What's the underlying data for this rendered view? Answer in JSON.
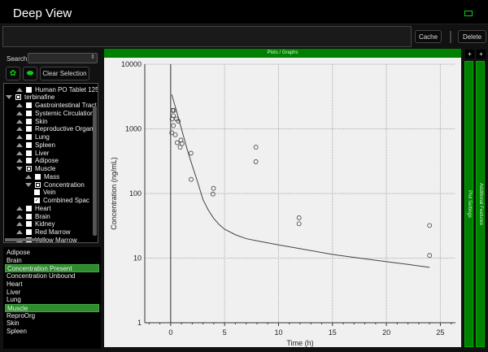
{
  "app": {
    "title": "Deep View",
    "window_icon": "restore-icon"
  },
  "toolbar": {
    "command_value": "",
    "cache_label": "Cache",
    "delete_label": "Delete"
  },
  "left": {
    "search_label": "Search",
    "search_value": "",
    "clear_label": "Clear Selection",
    "tree": [
      {
        "label": "Human PO Tablet 125n",
        "level": 1,
        "expander": "up",
        "check": "off"
      },
      {
        "label": "terbinafine",
        "level": 0,
        "expander": "down",
        "check": "partial"
      },
      {
        "label": "Gastrointestinal Tract",
        "level": 1,
        "expander": "up",
        "check": "off"
      },
      {
        "label": "Systemic Circulation",
        "level": 1,
        "expander": "up",
        "check": "off"
      },
      {
        "label": "Skin",
        "level": 1,
        "expander": "up",
        "check": "off"
      },
      {
        "label": "Reproductive Organ",
        "level": 1,
        "expander": "up",
        "check": "off"
      },
      {
        "label": "Lung",
        "level": 1,
        "expander": "up",
        "check": "off"
      },
      {
        "label": "Spleen",
        "level": 1,
        "expander": "up",
        "check": "off"
      },
      {
        "label": "Liver",
        "level": 1,
        "expander": "up",
        "check": "off"
      },
      {
        "label": "Adipose",
        "level": 1,
        "expander": "up",
        "check": "off"
      },
      {
        "label": "Muscle",
        "level": 1,
        "expander": "down",
        "check": "partial"
      },
      {
        "label": "Mass",
        "level": 2,
        "expander": "up",
        "check": "off"
      },
      {
        "label": "Concentration",
        "level": 2,
        "expander": "down",
        "check": "partial"
      },
      {
        "label": "Vein",
        "level": 3,
        "expander": "none",
        "check": "off"
      },
      {
        "label": "Combined Spac",
        "level": 3,
        "expander": "none",
        "check": "on"
      },
      {
        "label": "Heart",
        "level": 1,
        "expander": "up",
        "check": "off"
      },
      {
        "label": "Brain",
        "level": 1,
        "expander": "up",
        "check": "off"
      },
      {
        "label": "Kidney",
        "level": 1,
        "expander": "up",
        "check": "off"
      },
      {
        "label": "Red Marrow",
        "level": 1,
        "expander": "up",
        "check": "off"
      },
      {
        "label": "Yellow Marrow",
        "level": 1,
        "expander": "up",
        "check": "off"
      }
    ],
    "list": [
      {
        "label": "Adipose",
        "selected": false
      },
      {
        "label": "Brain",
        "selected": false
      },
      {
        "label": "Concentration Present",
        "selected": true
      },
      {
        "label": "Concentration Unbound",
        "selected": false
      },
      {
        "label": "Heart",
        "selected": false
      },
      {
        "label": "Liver",
        "selected": false
      },
      {
        "label": "Lung",
        "selected": false
      },
      {
        "label": "Muscle",
        "selected": true
      },
      {
        "label": "ReproOrg",
        "selected": false
      },
      {
        "label": "Skin",
        "selected": false
      },
      {
        "label": "Spleen",
        "selected": false
      }
    ]
  },
  "plot_panel": {
    "header": "Plots / Graphs",
    "plot_settings": "Plot Settings",
    "additional_features": "Additional Features",
    "expand_label": "+"
  },
  "colors": {
    "accent": "#008000",
    "selected": "#2e8b2e"
  },
  "chart_data": {
    "type": "scatter",
    "xlabel": "Time (h)",
    "ylabel": "Concentration (ng/mL)",
    "xlim": [
      -2.4,
      26.4
    ],
    "ylim": [
      1,
      10000
    ],
    "yscale": "log",
    "grid": true,
    "xticks": [
      0,
      5,
      10,
      15,
      20,
      25
    ],
    "yticks": [
      1,
      10,
      100,
      1000,
      10000
    ],
    "series": [
      {
        "kind": "line",
        "x": [
          0.1,
          0.5,
          1,
          1.5,
          2,
          2.5,
          3,
          3.5,
          4,
          4.5,
          5,
          6,
          7,
          8,
          10,
          12,
          15,
          17.5,
          20,
          22,
          24
        ],
        "y": [
          3400,
          2000,
          1000,
          500,
          270,
          150,
          80,
          55,
          41,
          33,
          28,
          23,
          20,
          18.5,
          16,
          14,
          11.4,
          10,
          8.8,
          8,
          7.2
        ]
      },
      {
        "kind": "points",
        "x": [
          0.18,
          0.28,
          0.25,
          0.13,
          0.55,
          0.7,
          0.25,
          0.1,
          0.43,
          0.6,
          0.95,
          0.88,
          1.05,
          1.88,
          1.9,
          3.97,
          3.92,
          7.9,
          7.9,
          11.9,
          11.9,
          24,
          24
        ],
        "y": [
          1930,
          1930,
          1600,
          1420,
          1420,
          1320,
          1120,
          870,
          810,
          610,
          670,
          520,
          590,
          420,
          165,
          120,
          98,
          520,
          310,
          42,
          34,
          32,
          11
        ]
      }
    ]
  }
}
